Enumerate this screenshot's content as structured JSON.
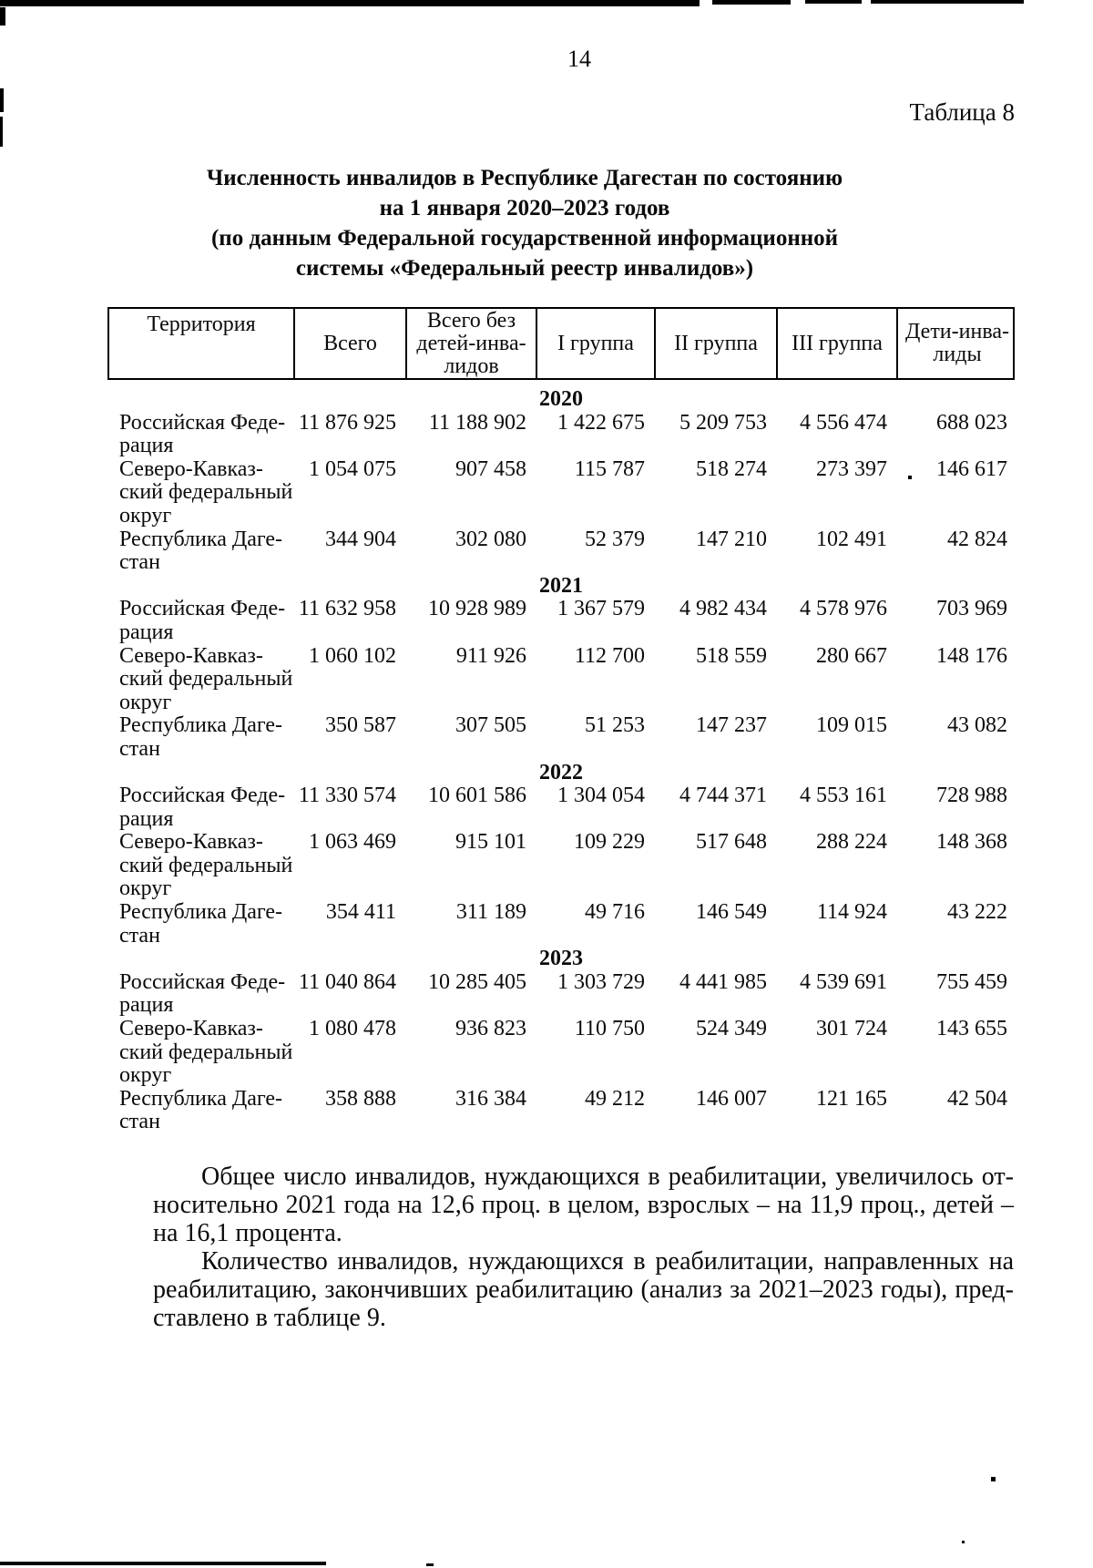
{
  "page": {
    "number": "14",
    "table_label": "Таблица 8"
  },
  "title": {
    "lines": [
      "Численность инвалидов в Республике Дагестан по состоянию",
      "на 1 января 2020–2023 годов",
      "(по данным Федеральной государственной информационной",
      "системы «Федеральный реестр инвалидов»)"
    ]
  },
  "table": {
    "columns": [
      "Территория",
      "Всего",
      "Всего без\nдетей-инва-\nлидов",
      "I группа",
      "II группа",
      "III группа",
      "Дети-инва-\nлиды"
    ],
    "sections": [
      {
        "year": "2020",
        "rows": [
          {
            "territory": "Российская Феде-\nрация",
            "values": [
              "11 876 925",
              "11 188 902",
              "1 422 675",
              "5 209 753",
              "4 556 474",
              "688 023"
            ]
          },
          {
            "territory": "Северо-Кавказ-\nский федеральный\nокруг",
            "values": [
              "1 054 075",
              "907 458",
              "115 787",
              "518 274",
              "273 397",
              "146 617"
            ]
          },
          {
            "territory": "Республика Даге-\nстан",
            "values": [
              "344 904",
              "302 080",
              "52 379",
              "147 210",
              "102 491",
              "42 824"
            ]
          }
        ]
      },
      {
        "year": "2021",
        "rows": [
          {
            "territory": "Российская Феде-\nрация",
            "values": [
              "11 632 958",
              "10 928 989",
              "1 367 579",
              "4 982 434",
              "4 578 976",
              "703 969"
            ]
          },
          {
            "territory": "Северо-Кавказ-\nский федеральный\nокруг",
            "values": [
              "1 060 102",
              "911 926",
              "112 700",
              "518 559",
              "280 667",
              "148 176"
            ]
          },
          {
            "territory": "Республика Даге-\nстан",
            "values": [
              "350 587",
              "307 505",
              "51 253",
              "147 237",
              "109 015",
              "43 082"
            ]
          }
        ]
      },
      {
        "year": "2022",
        "rows": [
          {
            "territory": "Российская Феде-\nрация",
            "values": [
              "11 330 574",
              "10 601 586",
              "1 304 054",
              "4 744 371",
              "4 553 161",
              "728 988"
            ]
          },
          {
            "territory": "Северо-Кавказ-\nский федеральный\nокруг",
            "values": [
              "1 063 469",
              "915 101",
              "109 229",
              "517 648",
              "288 224",
              "148 368"
            ]
          },
          {
            "territory": "Республика Даге-\nстан",
            "values": [
              "354 411",
              "311 189",
              "49 716",
              "146 549",
              "114 924",
              "43 222"
            ]
          }
        ]
      },
      {
        "year": "2023",
        "rows": [
          {
            "territory": "Российская Феде-\nрация",
            "values": [
              "11 040 864",
              "10 285 405",
              "1 303 729",
              "4 441 985",
              "4 539 691",
              "755 459"
            ]
          },
          {
            "territory": "Северо-Кавказ-\nский федеральный\nокруг",
            "values": [
              "1 080 478",
              "936 823",
              "110 750",
              "524 349",
              "301 724",
              "143 655"
            ]
          },
          {
            "territory": "Республика Даге-\nстан",
            "values": [
              "358 888",
              "316 384",
              "49 212",
              "146 007",
              "121 165",
              "42 504"
            ]
          }
        ]
      }
    ]
  },
  "paragraphs": [
    {
      "lines": [
        "Общее число инвалидов, нуждающихся в реабилитации, увеличилось от-",
        "носительно 2021 года на 12,6 проц. в целом, взрослых – на 11,9 проц., детей –",
        "на 16,1 процента."
      ]
    },
    {
      "lines": [
        "Количество инвалидов, нуждающихся в реабилитации, направленных на",
        "реабилитацию, закончивших реабилитацию (анализ за 2021–2023 годы), пред-",
        "ставлено в таблице 9."
      ]
    }
  ],
  "colors": {
    "ink": "#0b0b0b",
    "paper": "#ffffff"
  }
}
